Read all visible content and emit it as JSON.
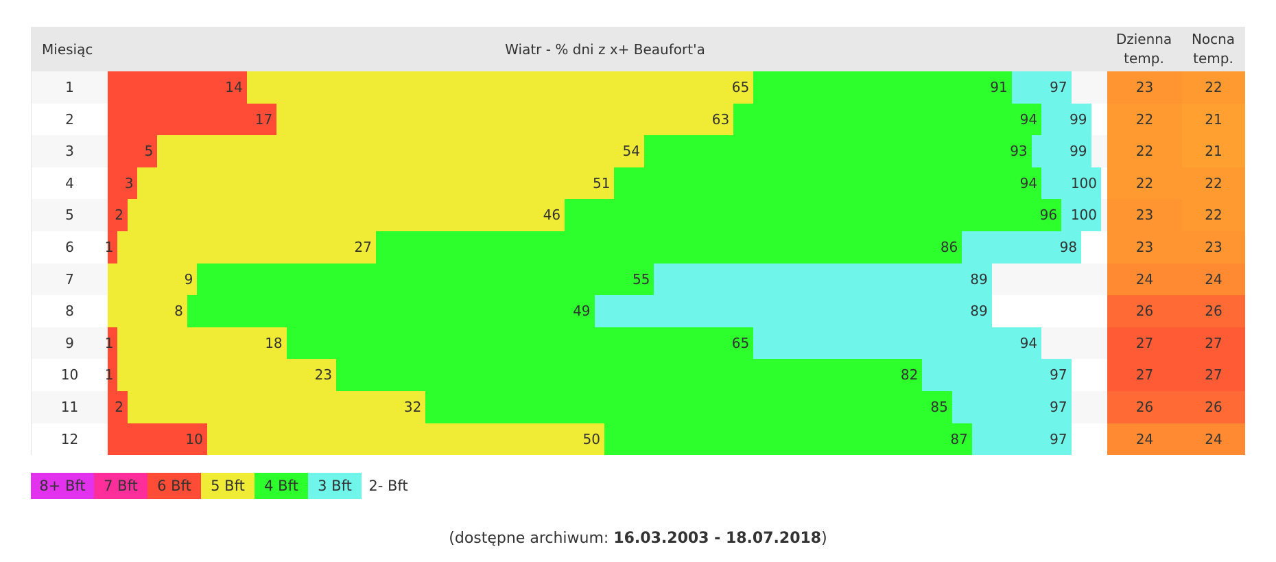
{
  "header": {
    "month": "Miesiąc",
    "wind": "Wiatr - % dni z x+ Beaufort'a",
    "day": [
      "Dzienna",
      "temp."
    ],
    "night": [
      "Nocna",
      "temp."
    ]
  },
  "table": {
    "rows": [
      {
        "month": "1",
        "wind": [
          {
            "color": "#ff4c36",
            "value": 14
          },
          {
            "color": "#f0ec36",
            "value": 65
          },
          {
            "color": "#2dff2d",
            "value": 91
          },
          {
            "color": "#6ff5ea",
            "value": 97
          }
        ],
        "day": {
          "value": 23,
          "color": "#ff9530"
        },
        "night": {
          "value": 22,
          "color": "#ff9a30"
        }
      },
      {
        "month": "2",
        "wind": [
          {
            "color": "#ff4c36",
            "value": 17
          },
          {
            "color": "#f0ec36",
            "value": 63
          },
          {
            "color": "#2dff2d",
            "value": 94
          },
          {
            "color": "#6ff5ea",
            "value": 99
          }
        ],
        "day": {
          "value": 22,
          "color": "#ff9a30"
        },
        "night": {
          "value": 21,
          "color": "#ffa030"
        }
      },
      {
        "month": "3",
        "wind": [
          {
            "color": "#ff4c36",
            "value": 5
          },
          {
            "color": "#f0ec36",
            "value": 54
          },
          {
            "color": "#2dff2d",
            "value": 93
          },
          {
            "color": "#6ff5ea",
            "value": 99
          }
        ],
        "day": {
          "value": 22,
          "color": "#ff9a30"
        },
        "night": {
          "value": 21,
          "color": "#ffa030"
        }
      },
      {
        "month": "4",
        "wind": [
          {
            "color": "#ff4c36",
            "value": 3
          },
          {
            "color": "#f0ec36",
            "value": 51
          },
          {
            "color": "#2dff2d",
            "value": 94
          },
          {
            "color": "#6ff5ea",
            "value": 100
          }
        ],
        "day": {
          "value": 22,
          "color": "#ff9a30"
        },
        "night": {
          "value": 22,
          "color": "#ff9a30"
        }
      },
      {
        "month": "5",
        "wind": [
          {
            "color": "#ff4c36",
            "value": 2
          },
          {
            "color": "#f0ec36",
            "value": 46
          },
          {
            "color": "#2dff2d",
            "value": 96
          },
          {
            "color": "#6ff5ea",
            "value": 100
          }
        ],
        "day": {
          "value": 23,
          "color": "#ff9530"
        },
        "night": {
          "value": 22,
          "color": "#ff9a30"
        }
      },
      {
        "month": "6",
        "wind": [
          {
            "color": "#ff4c36",
            "value": 1
          },
          {
            "color": "#f0ec36",
            "value": 27
          },
          {
            "color": "#2dff2d",
            "value": 86
          },
          {
            "color": "#6ff5ea",
            "value": 98
          }
        ],
        "day": {
          "value": 23,
          "color": "#ff9530"
        },
        "night": {
          "value": 23,
          "color": "#ff9530"
        }
      },
      {
        "month": "7",
        "wind": [
          {
            "color": "#f0ec36",
            "value": 9
          },
          {
            "color": "#2dff2d",
            "value": 55
          },
          {
            "color": "#6ff5ea",
            "value": 89
          }
        ],
        "day": {
          "value": 24,
          "color": "#ff8a32"
        },
        "night": {
          "value": 24,
          "color": "#ff8a32"
        }
      },
      {
        "month": "8",
        "wind": [
          {
            "color": "#f0ec36",
            "value": 8
          },
          {
            "color": "#2dff2d",
            "value": 49
          },
          {
            "color": "#6ff5ea",
            "value": 89
          }
        ],
        "day": {
          "value": 26,
          "color": "#ff6a35"
        },
        "night": {
          "value": 26,
          "color": "#ff6a35"
        }
      },
      {
        "month": "9",
        "wind": [
          {
            "color": "#ff4c36",
            "value": 1
          },
          {
            "color": "#f0ec36",
            "value": 18
          },
          {
            "color": "#2dff2d",
            "value": 65
          },
          {
            "color": "#6ff5ea",
            "value": 94
          }
        ],
        "day": {
          "value": 27,
          "color": "#ff5c36"
        },
        "night": {
          "value": 27,
          "color": "#ff5c36"
        }
      },
      {
        "month": "10",
        "wind": [
          {
            "color": "#ff4c36",
            "value": 1
          },
          {
            "color": "#f0ec36",
            "value": 23
          },
          {
            "color": "#2dff2d",
            "value": 82
          },
          {
            "color": "#6ff5ea",
            "value": 97
          }
        ],
        "day": {
          "value": 27,
          "color": "#ff5c36"
        },
        "night": {
          "value": 27,
          "color": "#ff5c36"
        }
      },
      {
        "month": "11",
        "wind": [
          {
            "color": "#ff4c36",
            "value": 2
          },
          {
            "color": "#f0ec36",
            "value": 32
          },
          {
            "color": "#2dff2d",
            "value": 85
          },
          {
            "color": "#6ff5ea",
            "value": 97
          }
        ],
        "day": {
          "value": 26,
          "color": "#ff6a35"
        },
        "night": {
          "value": 26,
          "color": "#ff6a35"
        }
      },
      {
        "month": "12",
        "wind": [
          {
            "color": "#ff4c36",
            "value": 10
          },
          {
            "color": "#f0ec36",
            "value": 50
          },
          {
            "color": "#2dff2d",
            "value": 87
          },
          {
            "color": "#6ff5ea",
            "value": 97
          }
        ],
        "day": {
          "value": 24,
          "color": "#ff8a32"
        },
        "night": {
          "value": 24,
          "color": "#ff8a32"
        }
      }
    ]
  },
  "legend": [
    {
      "label": "8+ Bft",
      "color": "#e232ee"
    },
    {
      "label": "7 Bft",
      "color": "#ff2e9a"
    },
    {
      "label": "6 Bft",
      "color": "#ff4c36"
    },
    {
      "label": "5 Bft",
      "color": "#f0ec36"
    },
    {
      "label": "4 Bft",
      "color": "#2dff2d"
    },
    {
      "label": "3 Bft",
      "color": "#6ff5ea"
    },
    {
      "label": "2- Bft",
      "color": "#ffffff"
    }
  ],
  "footer": {
    "prefix": "(dostępne archiwum:",
    "range": "16.03.2003 - 18.07.2018",
    "suffix": ")"
  }
}
